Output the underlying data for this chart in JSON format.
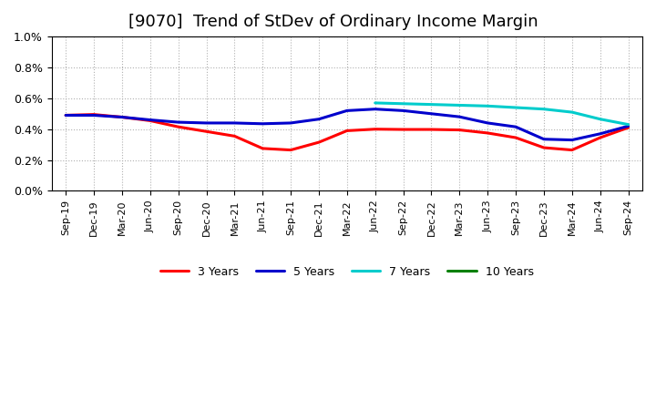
{
  "title": "[9070]  Trend of StDev of Ordinary Income Margin",
  "title_fontsize": 13,
  "background_color": "#ffffff",
  "plot_bg_color": "#ffffff",
  "ylim": [
    0.0,
    0.01
  ],
  "yticks": [
    0.0,
    0.002,
    0.004,
    0.006,
    0.008,
    0.01
  ],
  "ytick_labels": [
    "0.0%",
    "0.2%",
    "0.4%",
    "0.6%",
    "0.8%",
    "1.0%"
  ],
  "x_labels": [
    "Sep-19",
    "Dec-19",
    "Mar-20",
    "Jun-20",
    "Sep-20",
    "Dec-20",
    "Mar-21",
    "Jun-21",
    "Sep-21",
    "Dec-21",
    "Mar-22",
    "Jun-22",
    "Sep-22",
    "Dec-22",
    "Mar-23",
    "Jun-23",
    "Sep-23",
    "Dec-23",
    "Mar-24",
    "Jun-24",
    "Sep-24"
  ],
  "series": {
    "3 Years": {
      "color": "#ff0000",
      "linewidth": 2.2,
      "data": [
        0.0049,
        0.00495,
        0.00478,
        0.00455,
        0.00415,
        0.00385,
        0.00355,
        0.00275,
        0.00265,
        0.00315,
        0.0039,
        0.004,
        0.00398,
        0.00398,
        0.00395,
        0.00375,
        0.00345,
        0.0028,
        0.00265,
        0.00345,
        0.0041
      ]
    },
    "5 Years": {
      "color": "#0000cc",
      "linewidth": 2.2,
      "data": [
        0.0049,
        0.0049,
        0.00478,
        0.0046,
        0.00445,
        0.0044,
        0.0044,
        0.00435,
        0.0044,
        0.00465,
        0.0052,
        0.0053,
        0.0052,
        0.005,
        0.0048,
        0.0044,
        0.00415,
        0.00335,
        0.0033,
        0.0037,
        0.0042
      ]
    },
    "7 Years": {
      "color": "#00cccc",
      "linewidth": 2.2,
      "data": [
        null,
        null,
        null,
        null,
        null,
        null,
        null,
        null,
        null,
        null,
        null,
        0.0057,
        0.00565,
        0.0056,
        0.00555,
        0.0055,
        0.0054,
        0.0053,
        0.0051,
        0.00465,
        0.0043
      ]
    },
    "10 Years": {
      "color": "#008000",
      "linewidth": 2.2,
      "data": [
        null,
        null,
        null,
        null,
        null,
        null,
        null,
        null,
        null,
        null,
        null,
        null,
        null,
        null,
        null,
        null,
        null,
        null,
        null,
        null,
        null
      ]
    }
  }
}
